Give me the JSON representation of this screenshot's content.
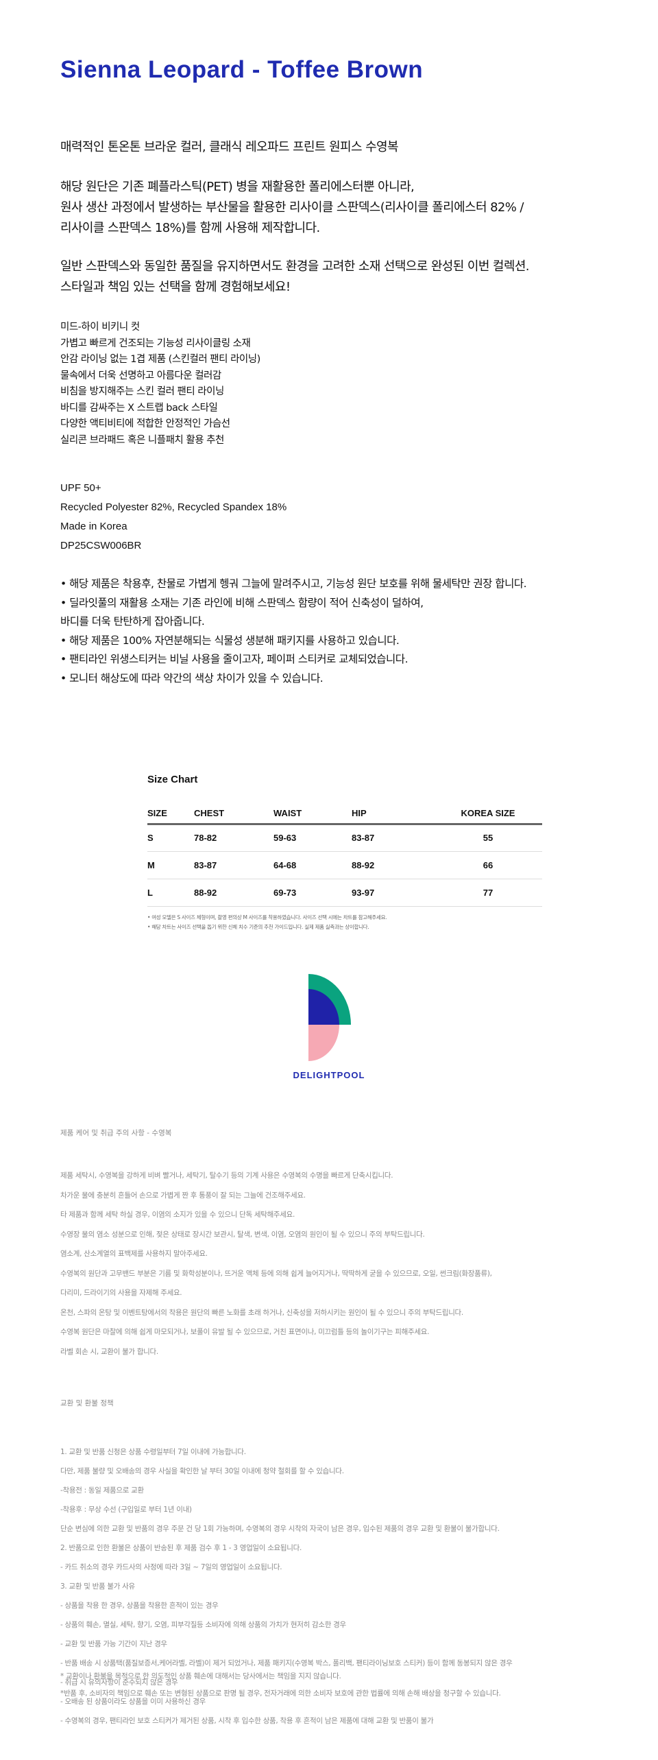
{
  "title": "Sienna Leopard - Toffee Brown",
  "intro": "매력적인 톤온톤 브라운 컬러, 클래식 레오파드 프린트 원피스 수영복",
  "para2": [
    "해당 원단은 기존 폐플라스틱(PET) 병을 재활용한 폴리에스터뿐 아니라,",
    "원사 생산 과정에서 발생하는 부산물을 활용한 리사이클 스판덱스(리사이클 폴리에스터 82% /",
    "리사이클 스판덱스 18%)를 함께 사용해 제작합니다."
  ],
  "para3": [
    "일반 스판덱스와 동일한 품질을 유지하면서도 환경을 고려한 소재 선택으로 완성된 이번 컬렉션.",
    "스타일과 책임 있는 선택을 함께 경험해보세요!"
  ],
  "features": [
    "미드-하이 비키니 컷",
    "가볍고 빠르게 건조되는 기능성 리사이클링 소재",
    "안감 라이닝 없는 1겹 제품 (스킨컬러 팬티 라이닝)",
    "물속에서 더욱 선명하고 아름다운 컬러감",
    "비침을 방지해주는 스킨 컬러 팬티 라이닝",
    "바디를 감싸주는 X 스트랩 back 스타일",
    "다양한 액티비티에 적합한 안정적인 가슴선",
    "실리콘 브라패드 혹은 니플패치 활용 추천"
  ],
  "specs": [
    "UPF 50+",
    "Recycled Polyester 82%, Recycled Spandex 18%",
    "Made in Korea",
    "DP25CSW006BR"
  ],
  "notices": [
    "• 해당 제품은 착용후, 찬물로 가볍게 헹궈 그늘에 말려주시고, 기능성 원단 보호를 위해 물세탁만 권장 합니다.",
    "• 딜라잇풀의 재활용 소재는 기존 라인에 비해 스판덱스 함량이 적어 신축성이 덜하여,",
    "바디를 더욱 탄탄하게 잡아줍니다.",
    "• 해당 제품은 100% 자연분해되는 식물성 생분해 패키지를 사용하고 있습니다.",
    "• 팬티라인 위생스티커는 비닐 사용을 줄이고자, 페이퍼 스티커로 교체되었습니다.",
    "• 모니터 해상도에 따라 약간의 색상 차이가 있을 수 있습니다."
  ],
  "size_chart": {
    "title": "Size Chart",
    "headers": [
      "SIZE",
      "CHEST",
      "WAIST",
      "HIP",
      "KOREA SIZE"
    ],
    "rows": [
      [
        "S",
        "78-82",
        "59-63",
        "83-87",
        "55"
      ],
      [
        "M",
        "83-87",
        "64-68",
        "88-92",
        "66"
      ],
      [
        "L",
        "88-92",
        "69-73",
        "93-97",
        "77"
      ]
    ],
    "notes": [
      "• 여성 모델은 S 사이즈 체형이며, 촬영 편의상 M 사이즈를 착용하였습니다. 사이즈 선택 시에는 차트를 참고해주세요.",
      "• 해당 차트는 사이즈 선택을 돕기 위한 신체 치수 기준의 추천 가이드입니다. 실제 제품 실측과는 상이합니다."
    ]
  },
  "logo": {
    "text": "DELIGHTPOOL",
    "colors": {
      "green": "#0aa37f",
      "blue": "#1f22a8",
      "pink": "#f6a9b4"
    }
  },
  "care": {
    "title": "제품 케어 및 취급 주의 사항 - 수영복",
    "lines": [
      "제품 세탁시, 수영복을 강하게 비벼 빨거나, 세탁기, 탈수기 등의 기계 사용은 수영복의 수명을 빠르게 단축시킵니다.",
      "차가운 물에 충분히 흔들어 손으로 가볍게 짠 후 통풍이 잘 되는 그늘에 건조해주세요.",
      "타 제품과 함께 세탁 하실 경우, 이염의 소지가 있을 수 있으니 단독 세탁해주세요.",
      "수영장 물의 염소 성분으로 인해, 젖은 상태로 장시간 보관시, 탈색, 변색, 이염, 오염의 원인이 될 수 있으니 주의 부탁드립니다.",
      "염소계, 산소계열의 표백제를 사용하지 말아주세요.",
      "수영복의 원단과 고무밴드 부분은 기름 및 화학성분이나, 뜨거운 액체 등에 의해 쉽게 늘어지거나, 딱딱하게 굳을 수 있으므로, 오일, 썬크림(화장품류),",
      "다리미, 드라이기의 사용을 자제해 주세요.",
      "온천, 스파의 온탕 및 이벤트탕에서의 착용은 원단의 빠른 노화를 초래 하거나, 신축성을 저하시키는 원인이 될 수 있으니 주의 부탁드립니다.",
      "수영복 원단은 마찰에 의해 쉽게 마모되거나, 보풀이 유발 될 수 있으므로, 거친 표면이나, 미끄럼틀 등의 놀이기구는 피해주세요.",
      "라벨 회손 시, 교환이 불가 합니다."
    ]
  },
  "exchange": {
    "title": "교환 및 환불 정책",
    "lines": [
      "1. 교환 및 반품 신청은 상품 수령일부터 7일 이내에 가능합니다.",
      "다만, 제품 불량 및 오배송의 경우 사실을 확인한 날 부터 30일 이내에 청약 철회를 할 수 있습니다.",
      "-착용전 : 동일 제품으로 교환",
      "-착용후 : 무상 수선 (구입일로 부터 1년 이내)",
      "단순 변심에 의한 교환 및 반품의 경우 주문 건 당 1회 가능하며, 수영복의 경우 시착의 자국이 남은 경우, 입수된 제품의 경우 교환 및 환불이 불가합니다.",
      "2. 반품으로 인한 환불은 상품이 반송된 후 제품 검수 후 1 - 3 영업일이 소요됩니다.",
      "- 카드 취소의 경우 카드사의 사정에 따라 3일 ~ 7일의 영업일이 소요됩니다.",
      "3. 교환 및 반품 불가 사유",
      "- 상품을 착용 한 경우, 상품을 착용한 흔적이 있는 경우",
      "- 상품의 훼손, 멸실, 세탁, 향기, 오염, 피부각질등 소비자에 의해 상품의 가치가 현저히 감소한 경우",
      "- 교환 및 반품 가능 기간이 지난 경우",
      "- 반품 배송 시 상품택(품질보증서,케어라벨, 라벨)이 제거 되었거나, 제품 패키지(수영복 박스, 폴리백, 팬티라이닝보호 스티커) 등이 함께 동봉되지 않은 경우",
      "- 취급 시 유의사항이 준수되지 않은 경우",
      "- 오배송 된 상품이라도 상품을 이미 사용하신 경우",
      "- 수영복의 경우, 팬티라인 보호 스티커가 제거된 상품, 시착 후 입수한 상품, 착용 후 흔적이 남은 제품에 대해 교환 및 반품이 불가"
    ],
    "footnotes": [
      "* 교환이나 환불을 목적으로 한 의도적인 상품 훼손에 대해서는 당사에서는 책임을 지지 않습니다.",
      "*반품 후, 소비자의 책임으로 훼손 또는 변형된 상품으로 판명 될 경우, 전자거래에 의한 소비자 보호에 관한 법률에 의해 손해 배상을 청구할 수 있습니다."
    ]
  }
}
